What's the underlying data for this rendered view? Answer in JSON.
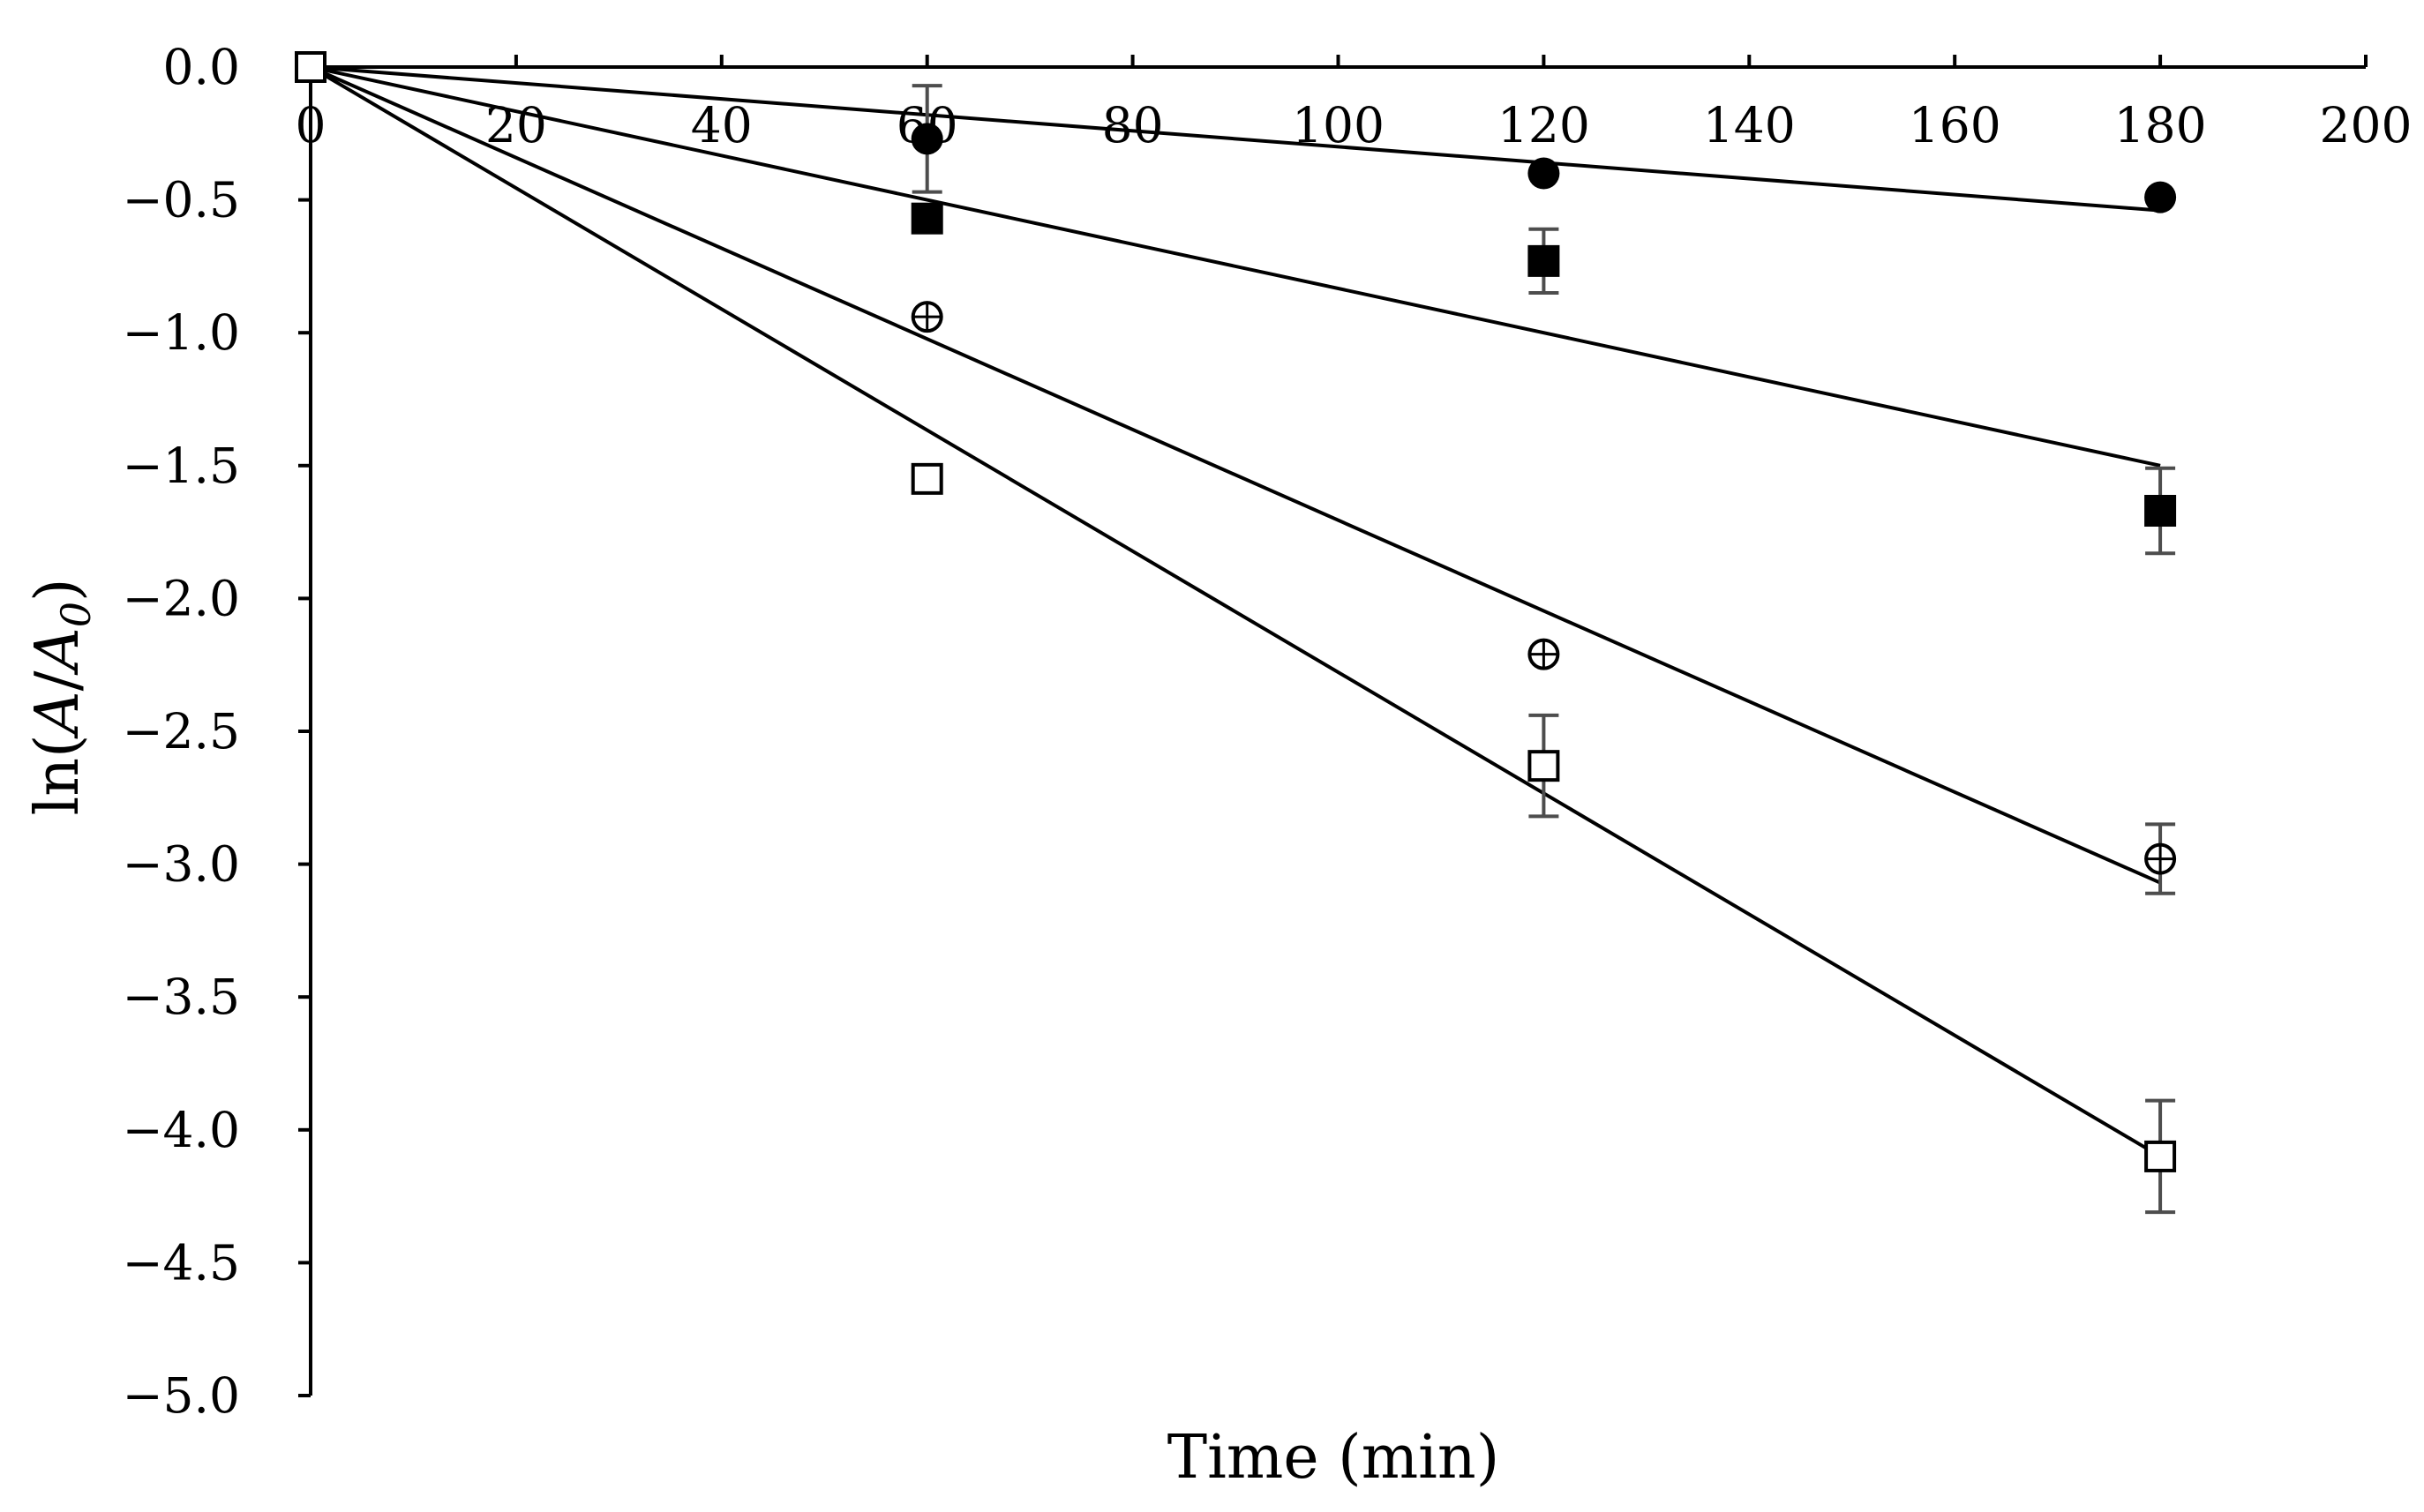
{
  "chart_data": {
    "type": "scatter",
    "xlabel": "Time (min)",
    "ylabel_parts": [
      "ln(",
      "A",
      "/",
      "A",
      "0",
      ")"
    ],
    "xlim": [
      0,
      200
    ],
    "ylim": [
      -5.0,
      0.0
    ],
    "x_ticks": [
      0,
      20,
      40,
      60,
      80,
      100,
      120,
      140,
      160,
      180,
      200
    ],
    "x_tick_labels": [
      "0",
      "20",
      "40",
      "60",
      "80",
      "100",
      "120",
      "140",
      "160",
      "180",
      "200"
    ],
    "y_ticks": [
      0.0,
      -0.5,
      -1.0,
      -1.5,
      -2.0,
      -2.5,
      -3.0,
      -3.5,
      -4.0,
      -4.5,
      -5.0
    ],
    "y_tick_labels": [
      "0.0",
      "−0.5",
      "−1.0",
      "−1.5",
      "−2.0",
      "−2.5",
      "−3.0",
      "−3.5",
      "−4.0",
      "−4.5",
      "−5.0"
    ],
    "x_axis_position": "top (at y = 0)",
    "grid": false,
    "legend": "none",
    "series": [
      {
        "marker": "filled-circle",
        "x": [
          0,
          60,
          120,
          180
        ],
        "y": [
          0.0,
          -0.27,
          -0.4,
          -0.49
        ],
        "err": [
          0.0,
          0.2,
          0.0,
          0.0
        ],
        "fit": {
          "x": [
            0,
            180
          ],
          "y": [
            0.0,
            -0.54
          ]
        }
      },
      {
        "marker": "filled-square",
        "x": [
          0,
          60,
          120,
          180
        ],
        "y": [
          0.0,
          -0.57,
          -0.73,
          -1.67
        ],
        "err": [
          0.0,
          0.0,
          0.12,
          0.16
        ],
        "fit": {
          "x": [
            0,
            180
          ],
          "y": [
            0.0,
            -1.5
          ]
        }
      },
      {
        "marker": "crossed-circle",
        "x": [
          0,
          60,
          120,
          180
        ],
        "y": [
          0.0,
          -0.94,
          -2.21,
          -2.98
        ],
        "err": [
          0.0,
          0.0,
          0.0,
          0.13
        ],
        "fit": {
          "x": [
            0,
            180
          ],
          "y": [
            0.0,
            -3.07
          ]
        }
      },
      {
        "marker": "open-square",
        "x": [
          0,
          60,
          120,
          180
        ],
        "y": [
          0.0,
          -1.55,
          -2.63,
          -4.1
        ],
        "err": [
          0.0,
          0.0,
          0.19,
          0.21
        ],
        "fit": {
          "x": [
            0,
            180
          ],
          "y": [
            0.0,
            -4.1
          ]
        }
      }
    ]
  },
  "colors": {
    "marker": "#000000",
    "error_bar": "#4d4d4d",
    "axis": "#000000"
  }
}
